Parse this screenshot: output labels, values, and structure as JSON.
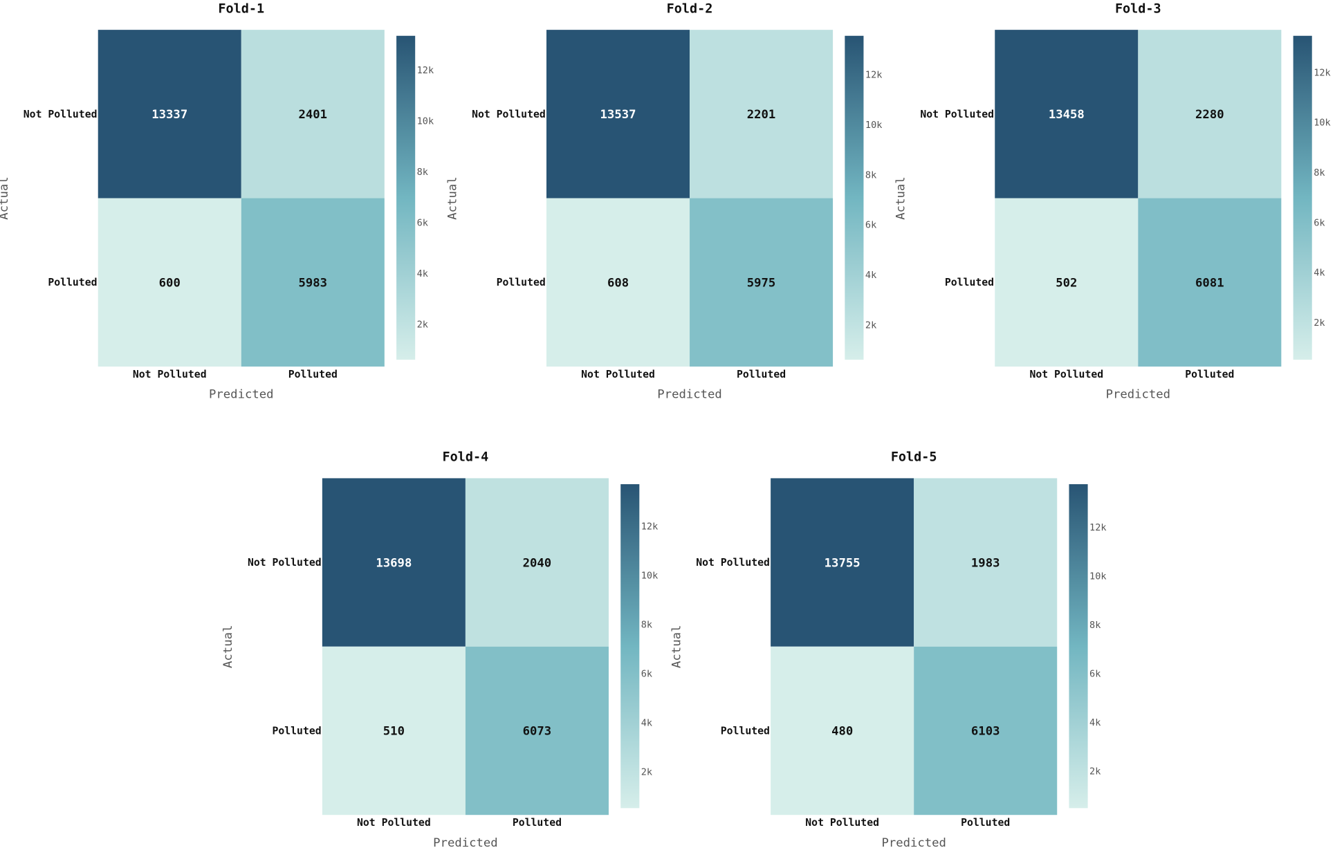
{
  "chart_data": [
    {
      "type": "heatmap",
      "title": "Fold-1",
      "xlabel": "Predicted",
      "ylabel": "Actual",
      "x_categories": [
        "Not Polluted",
        "Polluted"
      ],
      "y_categories": [
        "Not Polluted",
        "Polluted"
      ],
      "values": [
        [
          13337,
          2401
        ],
        [
          600,
          5983
        ]
      ],
      "colorbar": {
        "ticks": [
          2000,
          4000,
          6000,
          8000,
          10000,
          12000
        ],
        "tick_labels": [
          "2k",
          "4k",
          "6k",
          "8k",
          "10k",
          "12k"
        ]
      }
    },
    {
      "type": "heatmap",
      "title": "Fold-2",
      "xlabel": "Predicted",
      "ylabel": "Actual",
      "x_categories": [
        "Not Polluted",
        "Polluted"
      ],
      "y_categories": [
        "Not Polluted",
        "Polluted"
      ],
      "values": [
        [
          13537,
          2201
        ],
        [
          608,
          5975
        ]
      ],
      "colorbar": {
        "ticks": [
          2000,
          4000,
          6000,
          8000,
          10000,
          12000
        ],
        "tick_labels": [
          "2k",
          "4k",
          "6k",
          "8k",
          "10k",
          "12k"
        ]
      }
    },
    {
      "type": "heatmap",
      "title": "Fold-3",
      "xlabel": "Predicted",
      "ylabel": "Actual",
      "x_categories": [
        "Not Polluted",
        "Polluted"
      ],
      "y_categories": [
        "Not Polluted",
        "Polluted"
      ],
      "values": [
        [
          13458,
          2280
        ],
        [
          502,
          6081
        ]
      ],
      "colorbar": {
        "ticks": [
          2000,
          4000,
          6000,
          8000,
          10000,
          12000
        ],
        "tick_labels": [
          "2k",
          "4k",
          "6k",
          "8k",
          "10k",
          "12k"
        ]
      }
    },
    {
      "type": "heatmap",
      "title": "Fold-4",
      "xlabel": "Predicted",
      "ylabel": "Actual",
      "x_categories": [
        "Not Polluted",
        "Polluted"
      ],
      "y_categories": [
        "Not Polluted",
        "Polluted"
      ],
      "values": [
        [
          13698,
          2040
        ],
        [
          510,
          6073
        ]
      ],
      "colorbar": {
        "ticks": [
          2000,
          4000,
          6000,
          8000,
          10000,
          12000
        ],
        "tick_labels": [
          "2k",
          "4k",
          "6k",
          "8k",
          "10k",
          "12k"
        ]
      }
    },
    {
      "type": "heatmap",
      "title": "Fold-5",
      "xlabel": "Predicted",
      "ylabel": "Actual",
      "x_categories": [
        "Not Polluted",
        "Polluted"
      ],
      "y_categories": [
        "Not Polluted",
        "Polluted"
      ],
      "values": [
        [
          13755,
          1983
        ],
        [
          480,
          6103
        ]
      ],
      "colorbar": {
        "ticks": [
          2000,
          4000,
          6000,
          8000,
          10000,
          12000
        ],
        "tick_labels": [
          "2k",
          "4k",
          "6k",
          "8k",
          "10k",
          "12k"
        ]
      }
    }
  ],
  "colors": {
    "scale_low": "#d6eeea",
    "scale_mid": "#72b6c1",
    "scale_high": "#285474",
    "text_dark": "#111111",
    "text_light": "#ffffff",
    "label_gray": "#555555"
  }
}
